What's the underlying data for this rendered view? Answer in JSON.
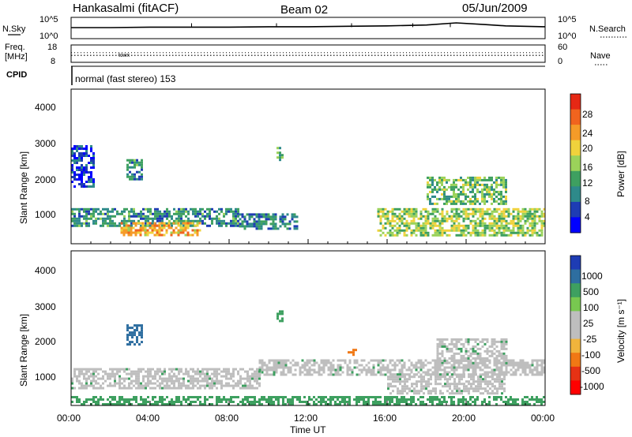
{
  "header": {
    "station": "Hankasalmi (fitACF)",
    "beam": "Beam 02",
    "date": "05/Jun/2009"
  },
  "top_panels": {
    "nsky_label": "N.Sky",
    "nsky_ticks": [
      "10^5",
      "10^0"
    ],
    "nsearch_label": "N.Search",
    "nsearch_ticks": [
      "10^5",
      "10^0"
    ],
    "freq_label_1": "Freq.",
    "freq_label_2": "[MHz]",
    "freq_ticks": [
      "18",
      "8"
    ],
    "nave_label": "Nave",
    "nave_ticks": [
      "60",
      "0"
    ],
    "cpid_label": "CPID",
    "mode_text": "normal (fast stereo) 153",
    "ghost_text": "tcwx"
  },
  "axes": {
    "ylabel": "Slant Range [km]",
    "xlabel": "Time UT",
    "y_ticks": [
      "4000",
      "3000",
      "2000",
      "1000"
    ],
    "x_ticks": [
      "00:00",
      "04:00",
      "08:00",
      "12:00",
      "16:00",
      "20:00",
      "00:00"
    ]
  },
  "colors": {
    "power_scale": [
      "#0000ff",
      "#1e3cb4",
      "#2e8a8a",
      "#3ea060",
      "#9bd25a",
      "#f0d23c",
      "#f59b28",
      "#f0641e",
      "#e62814"
    ],
    "velocity_scale": [
      "#1e3cb4",
      "#2e6ea0",
      "#3ea060",
      "#78c850",
      "#bebebe",
      "#bebebe",
      "#f0b43c",
      "#f07814",
      "#e63214",
      "#ff0000"
    ],
    "ground_scatter": "#bebebe"
  },
  "chart_data": [
    {
      "type": "line",
      "name": "N.Sky / N.Search",
      "x": [
        0,
        2,
        4,
        6,
        8,
        10,
        12,
        14,
        16,
        18,
        19.5,
        21,
        22,
        24
      ],
      "values": [
        2.6,
        2.6,
        2.7,
        2.7,
        2.7,
        2.8,
        2.8,
        2.9,
        3.0,
        3.2,
        3.7,
        3.3,
        3.0,
        2.8
      ],
      "ylim": [
        0,
        5
      ],
      "xlim": [
        0,
        24
      ]
    },
    {
      "type": "line",
      "name": "Freq. / Nave",
      "x": [
        0,
        24
      ],
      "freq_values": [
        12,
        12
      ],
      "nave_values": [
        36,
        36
      ],
      "freq_ylim": [
        8,
        18
      ],
      "nave_ylim": [
        0,
        60
      ]
    },
    {
      "type": "heatmap",
      "title": "Power",
      "xlabel": "Time UT",
      "ylabel": "Slant Range [km]",
      "colorbar_label": "Power [dB]",
      "colorbar_ticks": [
        "28",
        "24",
        "20",
        "16",
        "12",
        "8",
        "4"
      ],
      "colorbar_range": [
        0,
        32
      ],
      "xlim": [
        0,
        24
      ],
      "ylim": [
        180,
        4600
      ],
      "regions": [
        {
          "t0": 0.0,
          "t1": 8.5,
          "r0": 700,
          "r1": 1200,
          "level": 10
        },
        {
          "t0": 2.5,
          "t1": 6.5,
          "r0": 450,
          "r1": 800,
          "level": 22
        },
        {
          "t0": 8.5,
          "t1": 11.5,
          "r0": 600,
          "r1": 1050,
          "level": 9
        },
        {
          "t0": 15.5,
          "t1": 24.0,
          "r0": 450,
          "r1": 1200,
          "level": 16
        },
        {
          "t0": 18.0,
          "t1": 22.0,
          "r0": 1350,
          "r1": 2100,
          "level": 14
        },
        {
          "t0": 0.0,
          "t1": 1.2,
          "r0": 1800,
          "r1": 3000,
          "level": 5
        },
        {
          "t0": 2.8,
          "t1": 3.6,
          "r0": 2000,
          "r1": 2600,
          "level": 10
        },
        {
          "t0": 10.4,
          "t1": 10.7,
          "r0": 2550,
          "r1": 2950,
          "level": 12
        }
      ]
    },
    {
      "type": "heatmap",
      "title": "Velocity",
      "xlabel": "Time UT",
      "ylabel": "Slant Range [km]",
      "colorbar_label": "Velocity [m s⁻¹]",
      "colorbar_ticks": [
        "1000",
        "500",
        "100",
        "25",
        "-25",
        "-100",
        "-500",
        "-1000"
      ],
      "colorbar_range": [
        -1000,
        1000
      ],
      "xlim": [
        0,
        24
      ],
      "ylim": [
        180,
        4600
      ],
      "regions": [
        {
          "t0": 0.0,
          "t1": 9.5,
          "r0": 650,
          "r1": 1250,
          "level": 0
        },
        {
          "t0": 0.0,
          "t1": 24.0,
          "r0": 200,
          "r1": 450,
          "level": 40
        },
        {
          "t0": 9.5,
          "t1": 24.0,
          "r0": 1050,
          "r1": 1500,
          "level": 0
        },
        {
          "t0": 16.0,
          "t1": 22.0,
          "r0": 500,
          "r1": 1100,
          "level": 0
        },
        {
          "t0": 18.5,
          "t1": 22.0,
          "r0": 1400,
          "r1": 2100,
          "level": 0
        },
        {
          "t0": 2.8,
          "t1": 3.6,
          "r0": 1900,
          "r1": 2500,
          "level": 500
        },
        {
          "t0": 10.4,
          "t1": 10.7,
          "r0": 2600,
          "r1": 2900,
          "level": 100
        },
        {
          "t0": 14.0,
          "t1": 14.4,
          "r0": 1650,
          "r1": 1800,
          "level": -100
        }
      ]
    }
  ]
}
